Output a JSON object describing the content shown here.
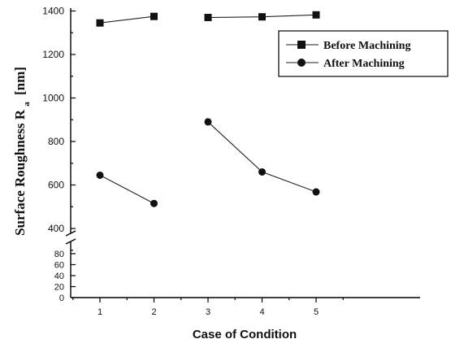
{
  "chart_data": {
    "type": "line",
    "title": "",
    "xlabel": "Case of Condition",
    "ylabel_main": "Surface Roughness R",
    "ylabel_sub": "a",
    "ylabel_unit": "[nm]",
    "x": [
      1,
      2,
      3,
      4,
      5
    ],
    "x_tick_labels": [
      "1",
      "2",
      "3",
      "4",
      "5"
    ],
    "y_upper_ticks": [
      "400",
      "600",
      "800",
      "1000",
      "1200",
      "1400"
    ],
    "y_lower_ticks": [
      "0",
      "20",
      "40",
      "60",
      "80"
    ],
    "y_axis": {
      "broken": true,
      "lower_range": [
        0,
        80
      ],
      "upper_range": [
        300,
        1400
      ]
    },
    "legend_placement": "top-right",
    "series": [
      {
        "name": "Before Machining",
        "marker": "square",
        "segments": [
          [
            1,
            2
          ],
          [
            3,
            4,
            5
          ]
        ],
        "values": [
          1345,
          1375,
          1370,
          1373,
          1382
        ]
      },
      {
        "name": "After Machining",
        "marker": "circle",
        "segments": [
          [
            1,
            2
          ],
          [
            3,
            4,
            5
          ]
        ],
        "values": [
          645,
          515,
          890,
          660,
          568
        ]
      }
    ],
    "colors": {
      "line": "#222222",
      "marker": "#111111"
    }
  }
}
